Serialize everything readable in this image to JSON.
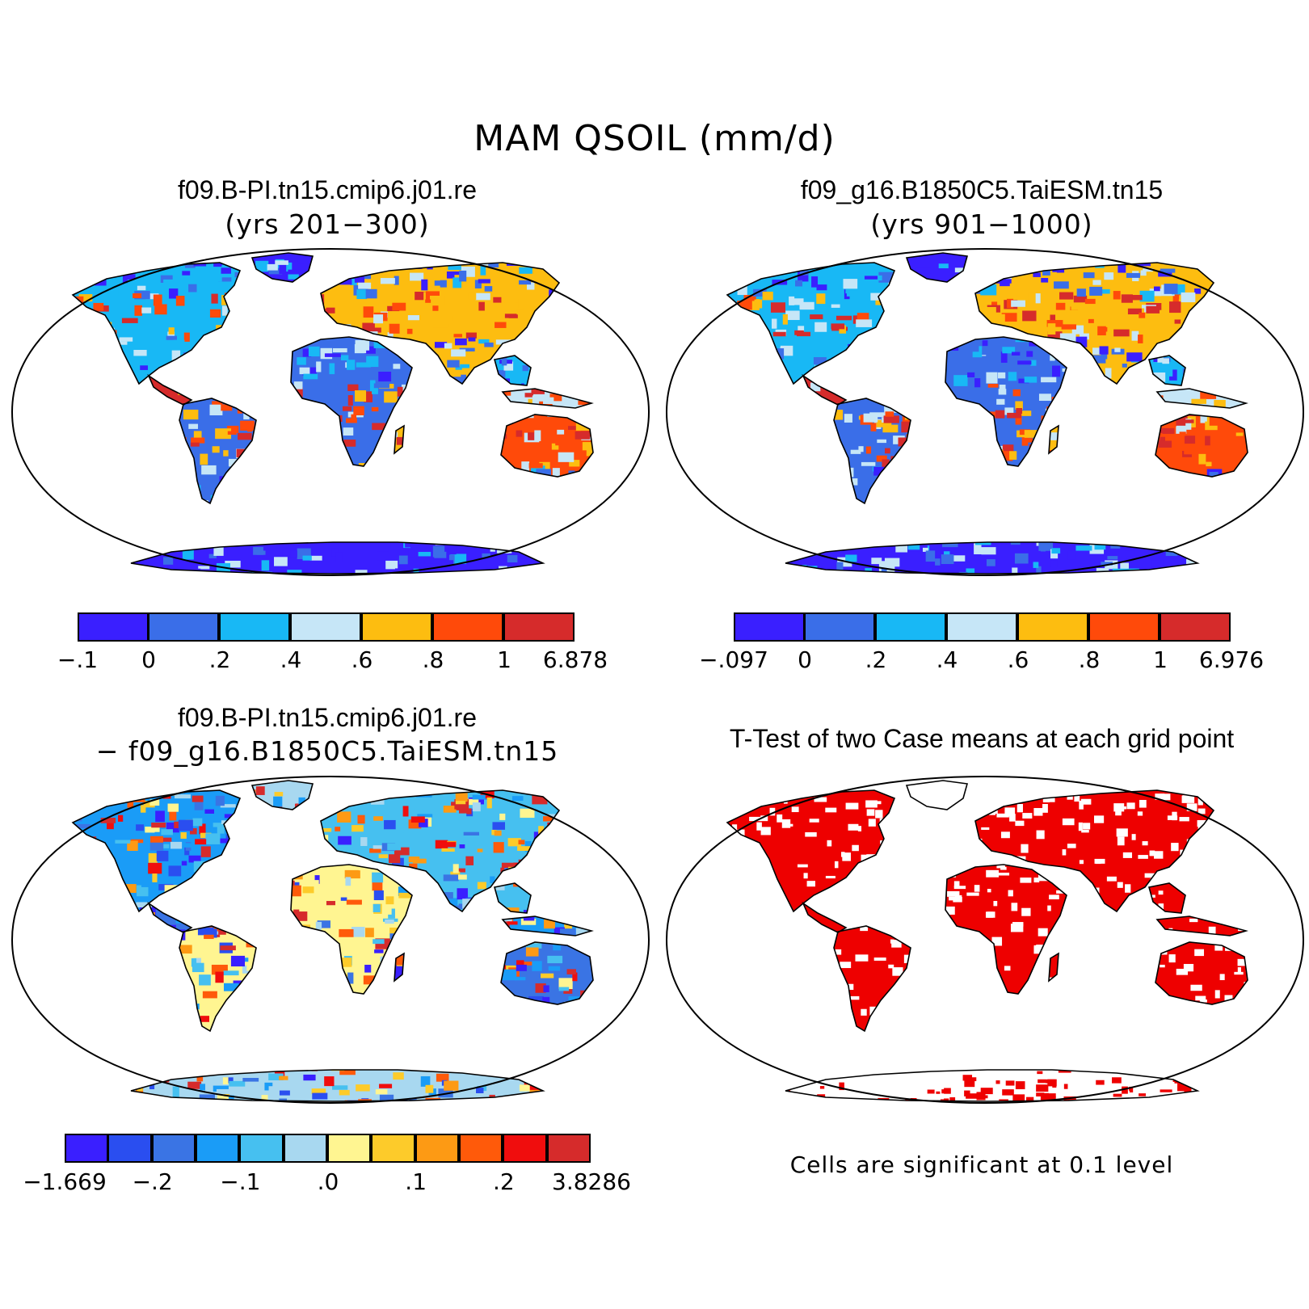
{
  "figure": {
    "main_title": "MAM QSOIL (mm/d)"
  },
  "panels": {
    "top_left": {
      "title": "f09.B-PI.tn15.cmip6.j01.re",
      "subtitle": "(yrs 201−300)",
      "colorbar": {
        "colors": [
          "#3a1fff",
          "#3a6ee8",
          "#18b8f5",
          "#c6e6f7",
          "#fdbd10",
          "#ff4a0a",
          "#d62b2b"
        ],
        "labels": [
          "−.1",
          "0",
          ".2",
          ".4",
          ".6",
          ".8",
          "1",
          "6.878"
        ]
      }
    },
    "top_right": {
      "title": "f09_g16.B1850C5.TaiESM.tn15",
      "subtitle": "(yrs 901−1000)",
      "colorbar": {
        "colors": [
          "#3a1fff",
          "#3a6ee8",
          "#18b8f5",
          "#c6e6f7",
          "#fdbd10",
          "#ff4a0a",
          "#d62b2b"
        ],
        "labels": [
          "−.097",
          "0",
          ".2",
          ".4",
          ".6",
          ".8",
          "1",
          "6.976"
        ]
      }
    },
    "bottom_left": {
      "title": "f09.B-PI.tn15.cmip6.j01.re",
      "subtitle": "− f09_g16.B1850C5.TaiESM.tn15",
      "colorbar": {
        "colors": [
          "#3a1fff",
          "#2a4ef0",
          "#3a74e4",
          "#1a9cf7",
          "#46c0f0",
          "#a8d8f0",
          "#fff591",
          "#fdcb2a",
          "#fd9a14",
          "#ff5a0a",
          "#f00d0d",
          "#d62b2b"
        ],
        "labels": [
          "−1.669",
          "−.2",
          "−.1",
          ".0",
          ".1",
          ".2",
          "3.8286"
        ]
      }
    },
    "bottom_right": {
      "title": "T-Test of two Case means at each grid point",
      "note": "Cells are significant at 0.1 level",
      "significance_color": "#ee0000"
    }
  }
}
